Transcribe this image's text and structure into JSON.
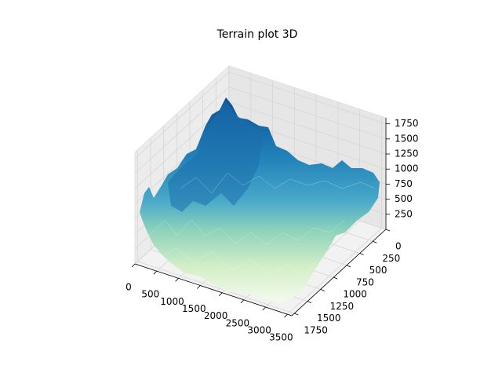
{
  "chart_data": {
    "type": "surface3d",
    "title": "Terrain plot 3D",
    "xlim": [
      0,
      3600
    ],
    "xticks": [
      0,
      500,
      1000,
      1500,
      2000,
      2500,
      3000,
      3500
    ],
    "ylim": [
      0,
      1800
    ],
    "yticks": [
      0,
      250,
      500,
      750,
      1000,
      1250,
      1500,
      1750
    ],
    "zlim": [
      0,
      1850
    ],
    "zticks": [
      250,
      500,
      750,
      1000,
      1250,
      1500,
      1750
    ],
    "grid": true
  }
}
